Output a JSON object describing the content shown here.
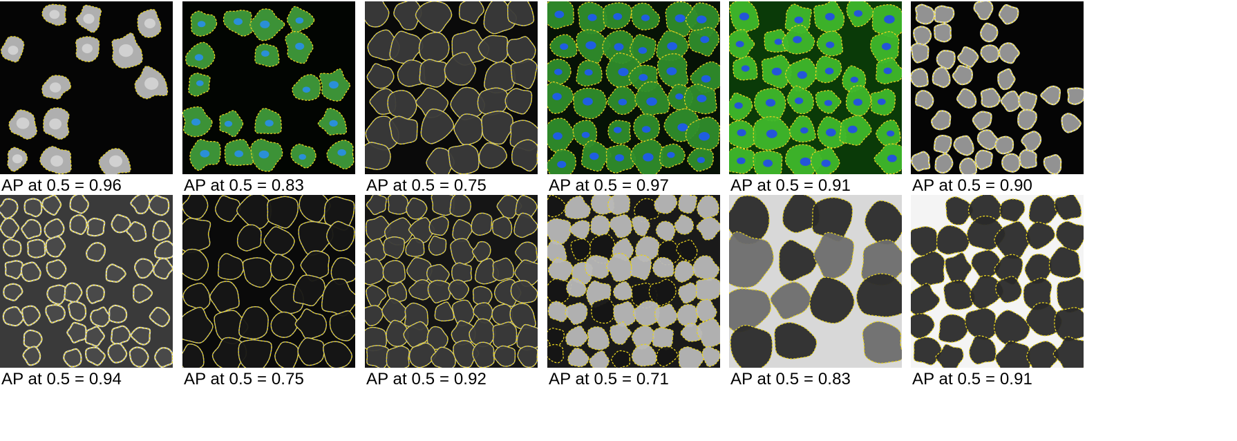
{
  "figure": {
    "panels": [
      {
        "caption": "AP at 0.5 = 0.96",
        "style": "fluorescent-gray",
        "background": "#050505",
        "cell_color": "#b8b8b8",
        "outline_color": "#e6d21f"
      },
      {
        "caption": "AP at 0.5 = 0.83",
        "style": "fluorescent-green-blue",
        "background": "#020502",
        "cell_color": "#3f9a3a",
        "nucleus_color": "#2a8fd8",
        "outline_color": "#e6d21f"
      },
      {
        "caption": "AP at 0.5 = 0.75",
        "style": "membrane-gray",
        "background": "#0a0a0a",
        "cell_color": "#3a3a3a",
        "outline_color": "#e6d21f"
      },
      {
        "caption": "AP at 0.5 = 0.97",
        "style": "tissue-green-blue",
        "background": "#061206",
        "cell_color": "#2f8d2b",
        "nucleus_color": "#1f5ee0",
        "outline_color": "#e6d21f"
      },
      {
        "caption": "AP at 0.5 = 0.91",
        "style": "tissue-bright-green",
        "background": "#0a3a08",
        "cell_color": "#3fb72b",
        "nucleus_color": "#2455d8",
        "outline_color": "#e6d21f"
      },
      {
        "caption": "AP at 0.5 = 0.90",
        "style": "rings-gray",
        "background": "#050505",
        "cell_color": "#9a9a9a",
        "outline_color": "#e6d21f"
      },
      {
        "caption": "AP at 0.5 = 0.94",
        "style": "circles-gray",
        "background": "#3a3a3a",
        "cell_color": "#4a4a4a",
        "outline_color": "#e6d21f"
      },
      {
        "caption": "AP at 0.5 = 0.75",
        "style": "membrane-net",
        "background": "#0a0a0a",
        "cell_color": "#161616",
        "outline_color": "#e6d21f"
      },
      {
        "caption": "AP at 0.5 = 0.92",
        "style": "dense-gray",
        "background": "#151515",
        "cell_color": "#3a3a3a",
        "outline_color": "#e6d21f"
      },
      {
        "caption": "AP at 0.5 = 0.71",
        "style": "fibers-light",
        "background": "#1a1a1a",
        "cell_color": "#b8b8b8",
        "outline_color": "#e6d21f"
      },
      {
        "caption": "AP at 0.5 = 0.83",
        "style": "large-gray",
        "background": "#d8d8d8",
        "cell_color": "#6e6e6e",
        "outline_color": "#e6d21f"
      },
      {
        "caption": "AP at 0.5 = 0.91",
        "style": "fibers-dark",
        "background": "#f4f4f4",
        "cell_color": "#2a2a2a",
        "outline_color": "#e6d21f"
      }
    ]
  }
}
